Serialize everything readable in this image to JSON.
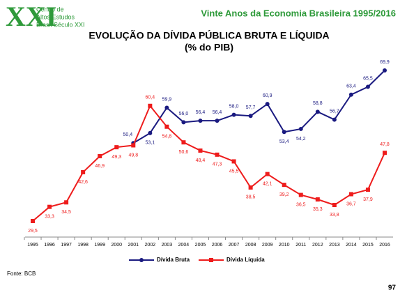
{
  "header": {
    "logo_mark": "XXI",
    "logo_lines": [
      "Centro de",
      "Altos Estudos",
      "Brasil Século XXI"
    ],
    "slide_title": "Vinte Anos da Economia Brasileira 1995/2016"
  },
  "chart_data": {
    "type": "line",
    "title": "EVOLUÇÃO DA DÍVIDA PÚBLICA BRUTA E LÍQUIDA",
    "subtitle": "(% do PIB)",
    "categories": [
      "1995",
      "1996",
      "1997",
      "1998",
      "1999",
      "2000",
      "2001",
      "2002",
      "2003",
      "2004",
      "2005",
      "2006",
      "2007",
      "2008",
      "2009",
      "2010",
      "2011",
      "2012",
      "2013",
      "2014",
      "2015",
      "2016"
    ],
    "series": [
      {
        "name": "Dívida Bruta",
        "color": "#1a1a80",
        "values": [
          null,
          null,
          null,
          null,
          null,
          null,
          50.4,
          53.1,
          59.9,
          56.0,
          56.4,
          56.4,
          58.0,
          57.7,
          60.9,
          53.4,
          54.2,
          58.8,
          56.7,
          63.4,
          65.5,
          69.9
        ],
        "value_labels": [
          null,
          null,
          null,
          null,
          null,
          null,
          "50,4",
          "53,1",
          "59,9",
          "56,0",
          "56,4",
          "56,4",
          "58,0",
          "57,7",
          "60,9",
          "53,4",
          "54,2",
          "58,8",
          "56,7",
          "63,4",
          "65,5",
          "69,9"
        ]
      },
      {
        "name": "Dívida Líquida",
        "color": "#ee1c1c",
        "values": [
          29.5,
          33.3,
          34.5,
          42.6,
          46.9,
          49.3,
          49.8,
          60.4,
          54.8,
          50.6,
          48.4,
          47.3,
          45.5,
          38.5,
          42.1,
          39.2,
          36.5,
          35.3,
          33.8,
          36.7,
          37.9,
          47.8
        ],
        "value_labels": [
          "29,5",
          "33,3",
          "34,5",
          "42,6",
          "46,9",
          "49,3",
          "49,8",
          "60,4",
          "54,8",
          "50,6",
          "48,4",
          "47,3",
          "45,5",
          "38,5",
          "42,1",
          "39,2",
          "36,5",
          "35,3",
          "33,8",
          "36,7",
          "37,9",
          "47,8"
        ]
      }
    ],
    "legend": "bottom"
  },
  "source": "Fonte: BCB",
  "page_number": "97"
}
